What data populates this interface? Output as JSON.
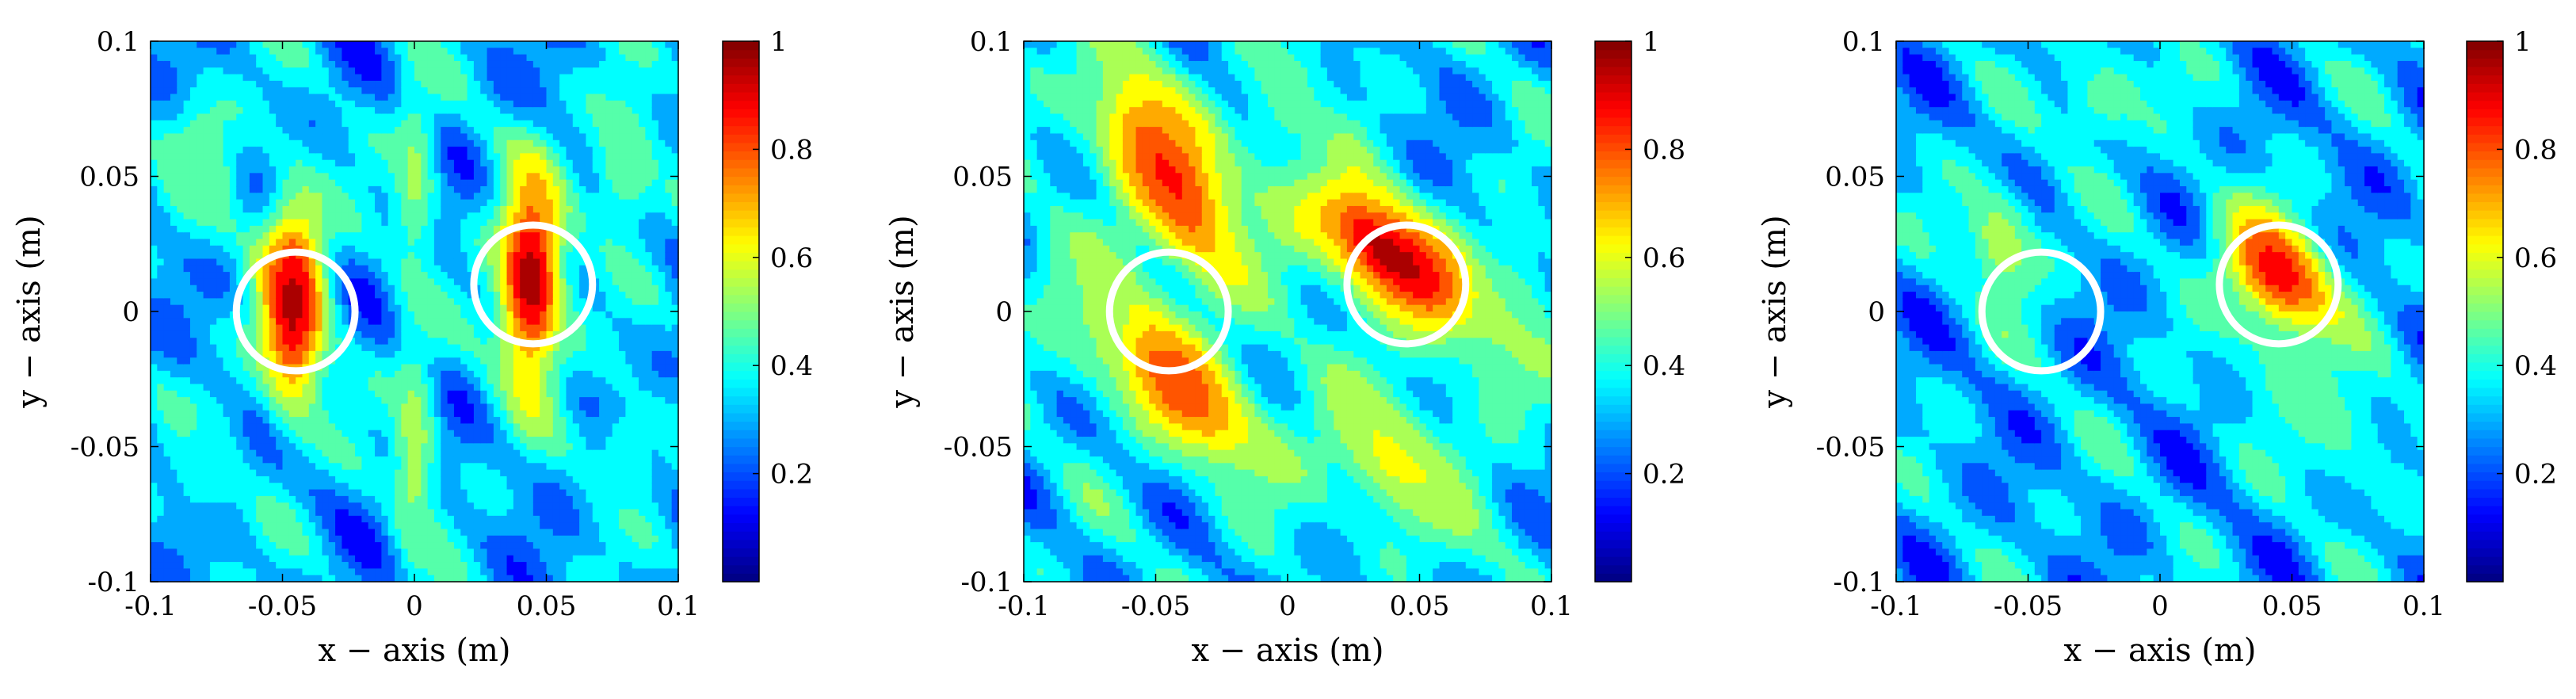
{
  "chart_data": [
    {
      "type": "heatmap",
      "title": "",
      "xlabel": "x − axis (m)",
      "ylabel": "y − axis (m)",
      "xlim": [
        -0.1,
        0.1
      ],
      "ylim": [
        -0.1,
        0.1
      ],
      "x_ticks": [
        "-0.1",
        "-0.05",
        "0",
        "0.05",
        "0.1"
      ],
      "y_ticks": [
        "-0.1",
        "-0.05",
        "0",
        "0.05",
        "0.1"
      ],
      "colorbar": {
        "min": 0,
        "max": 1,
        "ticks": [
          "0.2",
          "0.4",
          "0.6",
          "0.8",
          "1"
        ],
        "colormap": "jet"
      },
      "markers": [
        {
          "shape": "circle",
          "x": -0.045,
          "y": 0,
          "r": 0.015,
          "color": "#ffffff"
        },
        {
          "shape": "circle",
          "x": 0.045,
          "y": 0.01,
          "r": 0.015,
          "color": "#ffffff"
        }
      ],
      "peaks": [
        {
          "x": -0.046,
          "y": 0.003,
          "value": 0.95,
          "sx": 0.009,
          "sy": 0.028,
          "rot": 0
        },
        {
          "x": 0.044,
          "y": 0.012,
          "value": 0.97,
          "sx": 0.009,
          "sy": 0.028,
          "rot": 0
        },
        {
          "x": 0.0,
          "y": 0.05,
          "value": 0.52,
          "sx": 0.006,
          "sy": 0.025,
          "rot": 0
        },
        {
          "x": 0.0,
          "y": -0.05,
          "value": 0.55,
          "sx": 0.006,
          "sy": 0.03,
          "rot": 0
        },
        {
          "x": -0.08,
          "y": 0.055,
          "value": 0.5,
          "sx": 0.01,
          "sy": 0.02,
          "rot": 0
        },
        {
          "x": 0.08,
          "y": 0.055,
          "value": 0.5,
          "sx": 0.01,
          "sy": 0.02,
          "rot": 0
        },
        {
          "x": -0.08,
          "y": -0.055,
          "value": 0.4,
          "sx": 0.01,
          "sy": 0.02,
          "rot": 0
        },
        {
          "x": 0.08,
          "y": -0.055,
          "value": 0.4,
          "sx": 0.01,
          "sy": 0.02,
          "rot": 0
        }
      ],
      "background": 0.3
    },
    {
      "type": "heatmap",
      "title": "",
      "xlabel": "x − axis (m)",
      "ylabel": "y − axis (m)",
      "xlim": [
        -0.1,
        0.1
      ],
      "ylim": [
        -0.1,
        0.1
      ],
      "x_ticks": [
        "-0.1",
        "-0.05",
        "0",
        "0.05",
        "0.1"
      ],
      "y_ticks": [
        "-0.1",
        "-0.05",
        "0",
        "0.05",
        "0.1"
      ],
      "colorbar": {
        "min": 0,
        "max": 1,
        "ticks": [
          "0.2",
          "0.4",
          "0.6",
          "0.8",
          "1"
        ],
        "colormap": "jet"
      },
      "markers": [
        {
          "shape": "circle",
          "x": -0.045,
          "y": 0,
          "r": 0.015,
          "color": "#ffffff"
        },
        {
          "shape": "circle",
          "x": 0.045,
          "y": 0.01,
          "r": 0.015,
          "color": "#ffffff"
        }
      ],
      "peaks": [
        {
          "x": 0.04,
          "y": 0.02,
          "value": 0.97,
          "sx": 0.012,
          "sy": 0.032,
          "rot": 50
        },
        {
          "x": -0.045,
          "y": -0.025,
          "value": 0.85,
          "sx": 0.012,
          "sy": 0.032,
          "rot": 45
        },
        {
          "x": -0.045,
          "y": 0.05,
          "value": 0.85,
          "sx": 0.014,
          "sy": 0.035,
          "rot": 30
        },
        {
          "x": 0.04,
          "y": -0.055,
          "value": 0.6,
          "sx": 0.015,
          "sy": 0.03,
          "rot": 45
        },
        {
          "x": -0.075,
          "y": 0.0,
          "value": 0.5,
          "sx": 0.01,
          "sy": 0.02,
          "rot": 30
        },
        {
          "x": 0.085,
          "y": -0.005,
          "value": 0.5,
          "sx": 0.012,
          "sy": 0.025,
          "rot": 0
        },
        {
          "x": 0.0,
          "y": 0.08,
          "value": 0.45,
          "sx": 0.012,
          "sy": 0.02,
          "rot": 0
        }
      ],
      "background": 0.32
    },
    {
      "type": "heatmap",
      "title": "",
      "xlabel": "x − axis (m)",
      "ylabel": "y − axis (m)",
      "xlim": [
        -0.1,
        0.1
      ],
      "ylim": [
        -0.1,
        0.1
      ],
      "x_ticks": [
        "-0.1",
        "-0.05",
        "0",
        "0.05",
        "0.1"
      ],
      "y_ticks": [
        "-0.1",
        "-0.05",
        "0",
        "0.05",
        "0.1"
      ],
      "colorbar": {
        "min": 0,
        "max": 1,
        "ticks": [
          "0.2",
          "0.4",
          "0.6",
          "0.8",
          "1"
        ],
        "colormap": "jet"
      },
      "markers": [
        {
          "shape": "circle",
          "x": -0.045,
          "y": 0,
          "r": 0.015,
          "color": "#ffffff"
        },
        {
          "shape": "circle",
          "x": 0.045,
          "y": 0.01,
          "r": 0.015,
          "color": "#ffffff"
        }
      ],
      "peaks": [
        {
          "x": 0.045,
          "y": 0.012,
          "value": 0.95,
          "sx": 0.012,
          "sy": 0.02,
          "rot": 35
        },
        {
          "x": -0.06,
          "y": 0.025,
          "value": 0.55,
          "sx": 0.01,
          "sy": 0.018,
          "rot": 20
        },
        {
          "x": 0.06,
          "y": -0.035,
          "value": 0.45,
          "sx": 0.015,
          "sy": 0.03,
          "rot": 40
        },
        {
          "x": -0.02,
          "y": 0.08,
          "value": 0.45,
          "sx": 0.015,
          "sy": 0.015,
          "rot": 0
        }
      ],
      "background": 0.3
    }
  ]
}
